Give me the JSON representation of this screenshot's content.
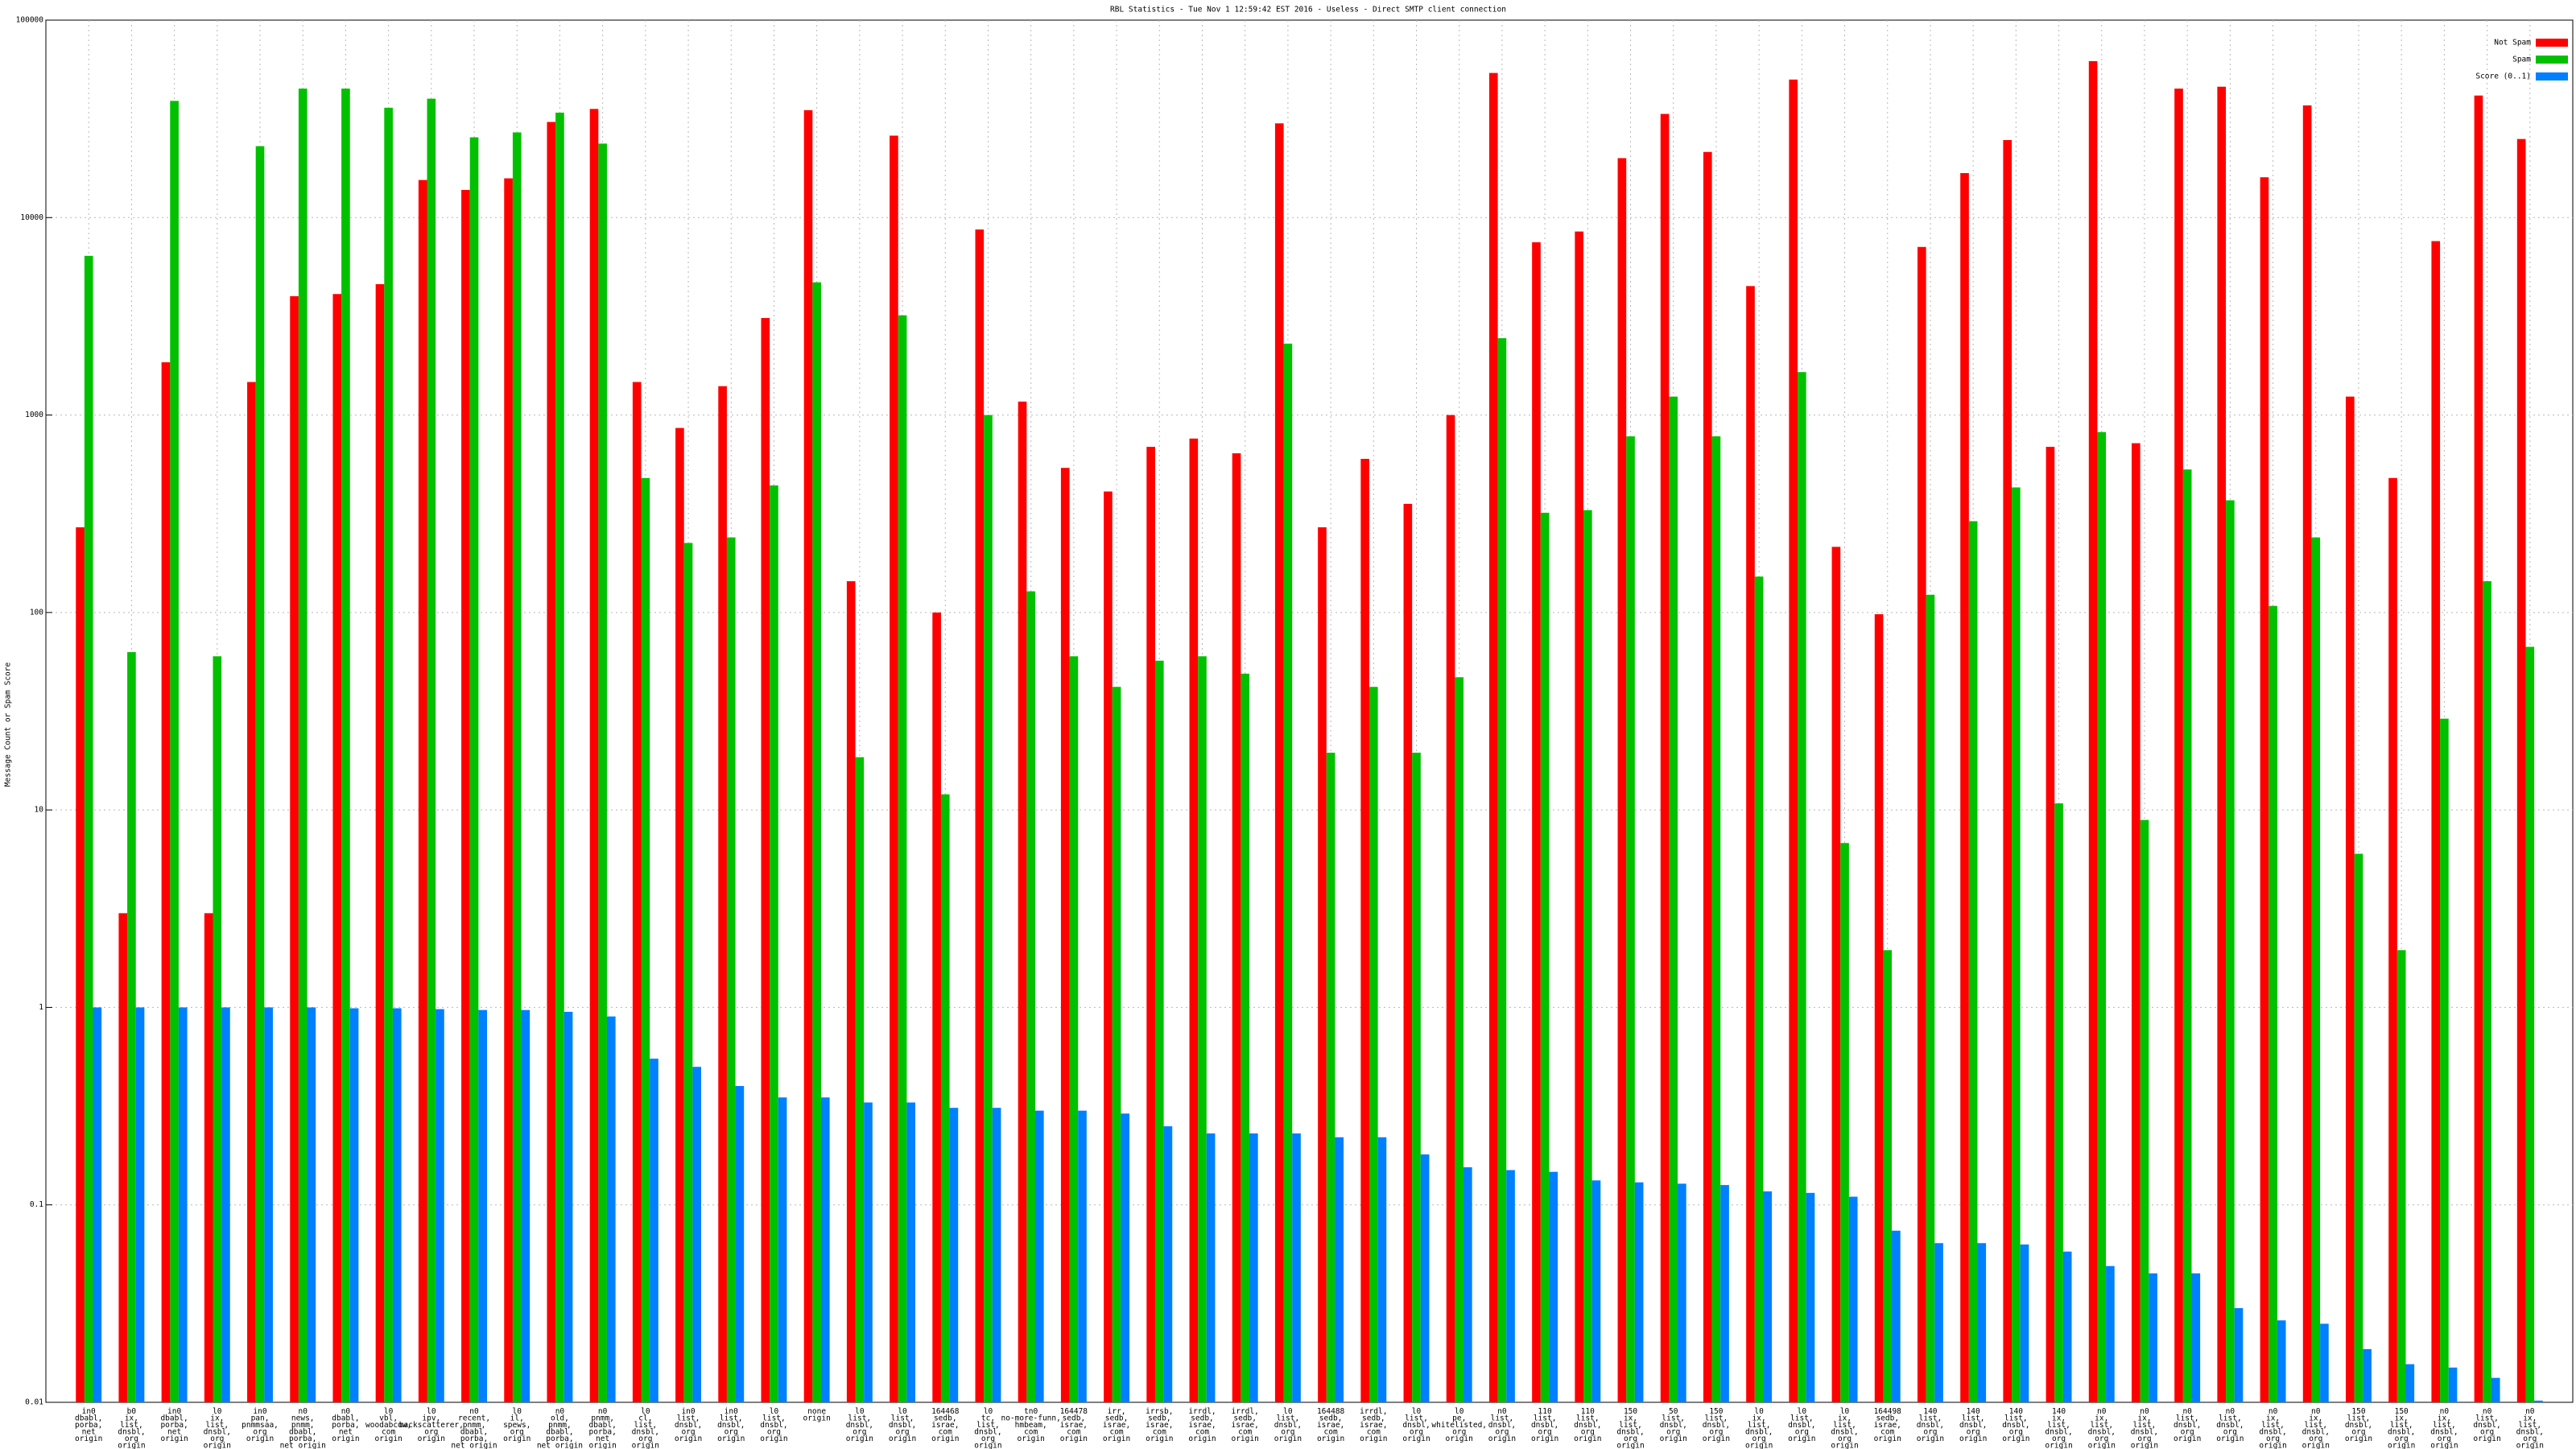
{
  "chart_data": {
    "type": "bar",
    "title": "RBL Statistics - Tue Nov  1 12:59:42 EST 2016 - Useless - Direct SMTP client connection",
    "y_label": "Message Count or Spam Score",
    "log_scale": true,
    "grid": true,
    "legend": "upper right",
    "ylim": [
      0.01,
      100000
    ],
    "yticks": [
      0.01,
      0.1,
      1,
      10,
      100,
      1000,
      10000,
      100000
    ],
    "categories": [
      [
        "in0",
        "dbabl,",
        "porba,",
        "net",
        "origin"
      ],
      [
        "b0",
        "ix,",
        "list,",
        "dnsbl,",
        "org",
        "origin"
      ],
      [
        "in0",
        "dbabl,",
        "porba,",
        "net",
        "origin"
      ],
      [
        "l0",
        "ix,",
        "list,",
        "dnsbl,",
        "org",
        "origin"
      ],
      [
        "in0",
        "pan,",
        "pnmmsaa,",
        "org",
        "origin"
      ],
      [
        "n0",
        "news,",
        "pnmm,",
        "dbabl,",
        "porba,",
        "net origin"
      ],
      [
        "n0",
        "dbabl,",
        "porba,",
        "net",
        "origin"
      ],
      [
        "l0",
        "vbl,",
        "woodabcow,",
        "com",
        "origin"
      ],
      [
        "l0",
        "ipv,",
        "backscatterer,",
        "org",
        "origin"
      ],
      [
        "n0",
        "recent,",
        "pnmm,",
        "dbabl,",
        "porba,",
        "net origin"
      ],
      [
        "l0",
        "il,",
        "spews,",
        "org",
        "origin"
      ],
      [
        "n0",
        "old,",
        "pnmm,",
        "dbabl,",
        "porba,",
        "net origin"
      ],
      [
        "n0",
        "pnmm,",
        "dbabl,",
        "porba,",
        "net",
        "origin"
      ],
      [
        "l0",
        "cl,",
        "list,",
        "dnsbl,",
        "org",
        "origin"
      ],
      [
        "in0",
        "list,",
        "dnsbl,",
        "org",
        "origin"
      ],
      [
        "in0",
        "list,",
        "dnsbl,",
        "org",
        "origin"
      ],
      [
        "l0",
        "list,",
        "dnsbl,",
        "org",
        "origin"
      ],
      [
        "none",
        "origin"
      ],
      [
        "l0",
        "list,",
        "dnsbl,",
        "org",
        "origin"
      ],
      [
        "l0",
        "list,",
        "dnsbl,",
        "org",
        "origin"
      ],
      [
        "164468",
        "sedb,",
        "israe,",
        "com",
        "origin"
      ],
      [
        "l0",
        "tc,",
        "list,",
        "dnsbl,",
        "org",
        "origin"
      ],
      [
        "tn0",
        "no-more-funn,",
        "hmbeam,",
        "com",
        "origin"
      ],
      [
        "164478",
        "sedb,",
        "israe,",
        "com",
        "origin"
      ],
      [
        "irr,",
        "sedb,",
        "israe,",
        "com",
        "origin"
      ],
      [
        "irrsb,",
        "sedb,",
        "israe,",
        "com",
        "origin"
      ],
      [
        "irrdl,",
        "sedb,",
        "israe,",
        "com",
        "origin"
      ],
      [
        "irrdl,",
        "sedb,",
        "israe,",
        "com",
        "origin"
      ],
      [
        "l0",
        "list,",
        "dnsbl,",
        "org",
        "origin"
      ],
      [
        "164488",
        "sedb,",
        "israe,",
        "com",
        "origin"
      ],
      [
        "irrdl,",
        "sedb,",
        "israe,",
        "com",
        "origin"
      ],
      [
        "l0",
        "list,",
        "dnsbl,",
        "org",
        "origin"
      ],
      [
        "l0",
        "pe,",
        "whitelisted,",
        "org",
        "origin"
      ],
      [
        "n0",
        "list,",
        "dnsbl,",
        "org",
        "origin"
      ],
      [
        "110",
        "list,",
        "dnsbl,",
        "org",
        "origin"
      ],
      [
        "110",
        "list,",
        "dnsbl,",
        "org",
        "origin"
      ],
      [
        "150",
        "ix,",
        "list,",
        "dnsbl,",
        "org",
        "origin"
      ],
      [
        "50",
        "list,",
        "dnsbl,",
        "org",
        "origin"
      ],
      [
        "150",
        "list,",
        "dnsbl,",
        "org",
        "origin"
      ],
      [
        "l0",
        "ix,",
        "list,",
        "dnsbl,",
        "org",
        "origin"
      ],
      [
        "l0",
        "list,",
        "dnsbl,",
        "org",
        "origin"
      ],
      [
        "l0",
        "ix,",
        "list,",
        "dnsbl,",
        "org",
        "origin"
      ],
      [
        "164498",
        "sedb,",
        "israe,",
        "com",
        "origin"
      ],
      [
        "140",
        "list,",
        "dnsbl,",
        "org",
        "origin"
      ],
      [
        "140",
        "list,",
        "dnsbl,",
        "org",
        "origin"
      ],
      [
        "140",
        "list,",
        "dnsbl,",
        "org",
        "origin"
      ],
      [
        "140",
        "ix,",
        "list,",
        "dnsbl,",
        "org",
        "origin"
      ],
      [
        "n0",
        "ix,",
        "list,",
        "dnsbl,",
        "org",
        "origin"
      ],
      [
        "n0",
        "ix,",
        "list,",
        "dnsbl,",
        "org",
        "origin"
      ],
      [
        "n0",
        "list,",
        "dnsbl,",
        "org",
        "origin"
      ],
      [
        "n0",
        "list,",
        "dnsbl,",
        "org",
        "origin"
      ],
      [
        "n0",
        "ix,",
        "list,",
        "dnsbl,",
        "org",
        "origin"
      ],
      [
        "n0",
        "ix,",
        "list,",
        "dnsbl,",
        "org",
        "origin"
      ],
      [
        "150",
        "list,",
        "dnsbl,",
        "org",
        "origin"
      ],
      [
        "150",
        "ix,",
        "list,",
        "dnsbl,",
        "org",
        "origin"
      ],
      [
        "n0",
        "ix,",
        "list,",
        "dnsbl,",
        "org",
        "origin"
      ],
      [
        "n0",
        "list,",
        "dnsbl,",
        "org",
        "origin"
      ],
      [
        "n0",
        "ix,",
        "list,",
        "dnsbl,",
        "org",
        "origin"
      ]
    ],
    "series": [
      {
        "name": "Not Spam",
        "color": "#ff0000",
        "values": [
          270,
          3,
          1850,
          3,
          1470,
          4000,
          4100,
          4600,
          15500,
          13800,
          15800,
          30500,
          35500,
          1470,
          860,
          1400,
          3100,
          35000,
          144,
          26000,
          100,
          8700,
          1170,
          540,
          410,
          690,
          760,
          640,
          30000,
          270,
          600,
          355,
          1000,
          54000,
          7500,
          8500,
          20000,
          33500,
          21500,
          4500,
          50000,
          215,
          98,
          7100,
          16800,
          24700,
          690,
          62000,
          720,
          45000,
          46000,
          16000,
          37000,
          1240,
          480,
          7600,
          41500,
          25000
        ]
      },
      {
        "name": "Spam",
        "color": "#00c000",
        "values": [
          6400,
          63,
          39000,
          60,
          23000,
          45000,
          45000,
          36000,
          40000,
          25500,
          27000,
          34000,
          23700,
          480,
          225,
          240,
          440,
          4700,
          18.5,
          3200,
          12,
          1000,
          128,
          60,
          42,
          57,
          60,
          49,
          2300,
          19.5,
          42,
          19.5,
          47,
          2450,
          320,
          330,
          780,
          1240,
          780,
          152,
          1650,
          6.8,
          1.95,
          123,
          290,
          430,
          10.8,
          820,
          8.9,
          530,
          370,
          108,
          240,
          6,
          1.95,
          29,
          144,
          67
        ]
      },
      {
        "name": "Score (0..1)",
        "color": "#0080ff",
        "values": [
          1.0,
          1.0,
          1.0,
          1.0,
          1.0,
          1.0,
          0.99,
          0.99,
          0.98,
          0.97,
          0.97,
          0.95,
          0.9,
          0.55,
          0.5,
          0.4,
          0.35,
          0.35,
          0.33,
          0.33,
          0.31,
          0.31,
          0.3,
          0.3,
          0.29,
          0.25,
          0.23,
          0.23,
          0.23,
          0.22,
          0.22,
          0.18,
          0.155,
          0.15,
          0.147,
          0.133,
          0.13,
          0.128,
          0.126,
          0.117,
          0.115,
          0.11,
          0.074,
          0.064,
          0.064,
          0.063,
          0.058,
          0.049,
          0.045,
          0.045,
          0.03,
          0.026,
          0.025,
          0.0186,
          0.0156,
          0.015,
          0.0133,
          0.0102
        ]
      }
    ]
  }
}
